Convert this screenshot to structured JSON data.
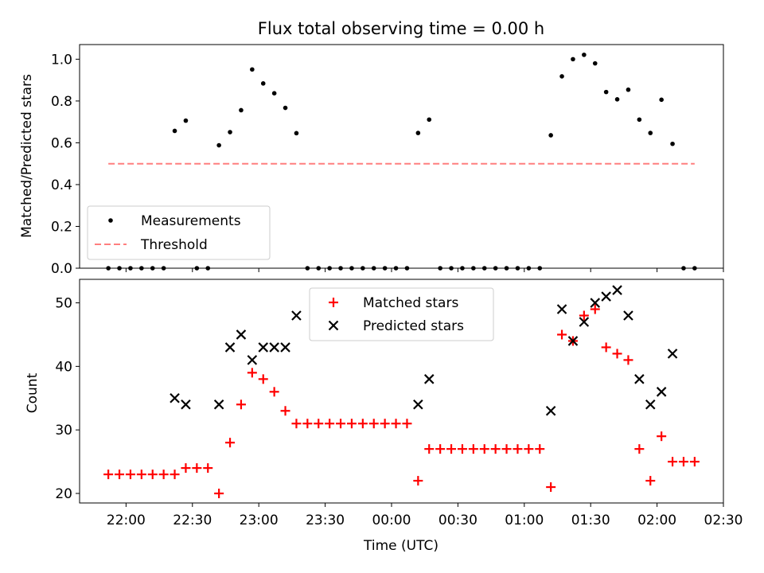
{
  "chart_data": [
    {
      "type": "scatter",
      "title": "Flux total observing time = 0.00 h",
      "xlabel": "",
      "ylabel": "Matched/Predicted stars",
      "ylim": [
        0,
        1.07
      ],
      "yticks": [
        "0.0",
        "0.2",
        "0.4",
        "0.6",
        "0.8",
        "1.0"
      ],
      "legend_position": "lower-left",
      "series": [
        {
          "name": "Measurements",
          "color": "#000000",
          "marker": "dot",
          "points": [
            [
              "21:52",
              0
            ],
            [
              "21:57",
              0
            ],
            [
              "22:02",
              0
            ],
            [
              "22:07",
              0
            ],
            [
              "22:12",
              0
            ],
            [
              "22:17",
              0
            ],
            [
              "22:22",
              0.657
            ],
            [
              "22:27",
              0.706
            ],
            [
              "22:32",
              0
            ],
            [
              "22:37",
              0
            ],
            [
              "22:42",
              0.588
            ],
            [
              "22:47",
              0.651
            ],
            [
              "22:52",
              0.756
            ],
            [
              "22:57",
              0.951
            ],
            [
              "23:02",
              0.884
            ],
            [
              "23:07",
              0.837
            ],
            [
              "23:12",
              0.767
            ],
            [
              "23:17",
              0.646
            ],
            [
              "23:22",
              0
            ],
            [
              "23:27",
              0
            ],
            [
              "23:32",
              0
            ],
            [
              "23:37",
              0
            ],
            [
              "23:42",
              0
            ],
            [
              "23:47",
              0
            ],
            [
              "23:52",
              0
            ],
            [
              "23:57",
              0
            ],
            [
              "00:02",
              0
            ],
            [
              "00:07",
              0
            ],
            [
              "00:12",
              0.647
            ],
            [
              "00:17",
              0.711
            ],
            [
              "00:22",
              0
            ],
            [
              "00:27",
              0
            ],
            [
              "00:32",
              0
            ],
            [
              "00:37",
              0
            ],
            [
              "00:42",
              0
            ],
            [
              "00:47",
              0
            ],
            [
              "00:52",
              0
            ],
            [
              "00:57",
              0
            ],
            [
              "01:02",
              0
            ],
            [
              "01:07",
              0
            ],
            [
              "01:12",
              0.636
            ],
            [
              "01:17",
              0.918
            ],
            [
              "01:22",
              1.0
            ],
            [
              "01:27",
              1.021
            ],
            [
              "01:32",
              0.98
            ],
            [
              "01:37",
              0.843
            ],
            [
              "01:42",
              0.808
            ],
            [
              "01:47",
              0.854
            ],
            [
              "01:52",
              0.711
            ],
            [
              "01:57",
              0.647
            ],
            [
              "02:02",
              0.806
            ],
            [
              "02:07",
              0.595
            ],
            [
              "02:12",
              0
            ],
            [
              "02:17",
              0
            ]
          ]
        },
        {
          "name": "Threshold",
          "color": "#ff7f7f",
          "marker": "dashed-line",
          "points": [
            [
              "21:52",
              0.5
            ],
            [
              "02:17",
              0.5
            ]
          ]
        }
      ]
    },
    {
      "type": "scatter",
      "title": "",
      "xlabel": "Time (UTC)",
      "ylabel": "Count",
      "ylim": [
        18.5,
        53.7
      ],
      "yticks": [
        "20",
        "30",
        "40",
        "50"
      ],
      "xlim": [
        "21:39",
        "02:30"
      ],
      "xticks": [
        "22:00",
        "22:30",
        "23:00",
        "23:30",
        "00:00",
        "00:30",
        "01:00",
        "01:30",
        "02:00",
        "02:30"
      ],
      "legend_position": "upper-center",
      "series": [
        {
          "name": "Matched stars",
          "color": "#ff0000",
          "marker": "plus",
          "points": [
            [
              "21:52",
              23
            ],
            [
              "21:57",
              23
            ],
            [
              "22:02",
              23
            ],
            [
              "22:07",
              23
            ],
            [
              "22:12",
              23
            ],
            [
              "22:17",
              23
            ],
            [
              "22:22",
              23
            ],
            [
              "22:27",
              24
            ],
            [
              "22:32",
              24
            ],
            [
              "22:37",
              24
            ],
            [
              "22:42",
              20
            ],
            [
              "22:47",
              28
            ],
            [
              "22:52",
              34
            ],
            [
              "22:57",
              39
            ],
            [
              "23:02",
              38
            ],
            [
              "23:07",
              36
            ],
            [
              "23:12",
              33
            ],
            [
              "23:17",
              31
            ],
            [
              "23:22",
              31
            ],
            [
              "23:27",
              31
            ],
            [
              "23:32",
              31
            ],
            [
              "23:37",
              31
            ],
            [
              "23:42",
              31
            ],
            [
              "23:47",
              31
            ],
            [
              "23:52",
              31
            ],
            [
              "23:57",
              31
            ],
            [
              "00:02",
              31
            ],
            [
              "00:07",
              31
            ],
            [
              "00:12",
              22
            ],
            [
              "00:17",
              27
            ],
            [
              "00:22",
              27
            ],
            [
              "00:27",
              27
            ],
            [
              "00:32",
              27
            ],
            [
              "00:37",
              27
            ],
            [
              "00:42",
              27
            ],
            [
              "00:47",
              27
            ],
            [
              "00:52",
              27
            ],
            [
              "00:57",
              27
            ],
            [
              "01:02",
              27
            ],
            [
              "01:07",
              27
            ],
            [
              "01:12",
              21
            ],
            [
              "01:17",
              45
            ],
            [
              "01:22",
              44
            ],
            [
              "01:27",
              48
            ],
            [
              "01:32",
              49
            ],
            [
              "01:37",
              43
            ],
            [
              "01:42",
              42
            ],
            [
              "01:47",
              41
            ],
            [
              "01:52",
              27
            ],
            [
              "01:57",
              22
            ],
            [
              "02:02",
              29
            ],
            [
              "02:07",
              25
            ],
            [
              "02:12",
              25
            ],
            [
              "02:17",
              25
            ]
          ]
        },
        {
          "name": "Predicted stars",
          "color": "#000000",
          "marker": "x",
          "points": [
            [
              "22:22",
              35
            ],
            [
              "22:27",
              34
            ],
            [
              "22:42",
              34
            ],
            [
              "22:47",
              43
            ],
            [
              "22:52",
              45
            ],
            [
              "22:57",
              41
            ],
            [
              "23:02",
              43
            ],
            [
              "23:07",
              43
            ],
            [
              "23:12",
              43
            ],
            [
              "23:17",
              48
            ],
            [
              "00:12",
              34
            ],
            [
              "00:17",
              38
            ],
            [
              "01:12",
              33
            ],
            [
              "01:17",
              49
            ],
            [
              "01:22",
              44
            ],
            [
              "01:27",
              47
            ],
            [
              "01:32",
              50
            ],
            [
              "01:37",
              51
            ],
            [
              "01:42",
              52
            ],
            [
              "01:47",
              48
            ],
            [
              "01:52",
              38
            ],
            [
              "01:57",
              34
            ],
            [
              "02:02",
              36
            ],
            [
              "02:07",
              42
            ]
          ]
        }
      ]
    }
  ]
}
